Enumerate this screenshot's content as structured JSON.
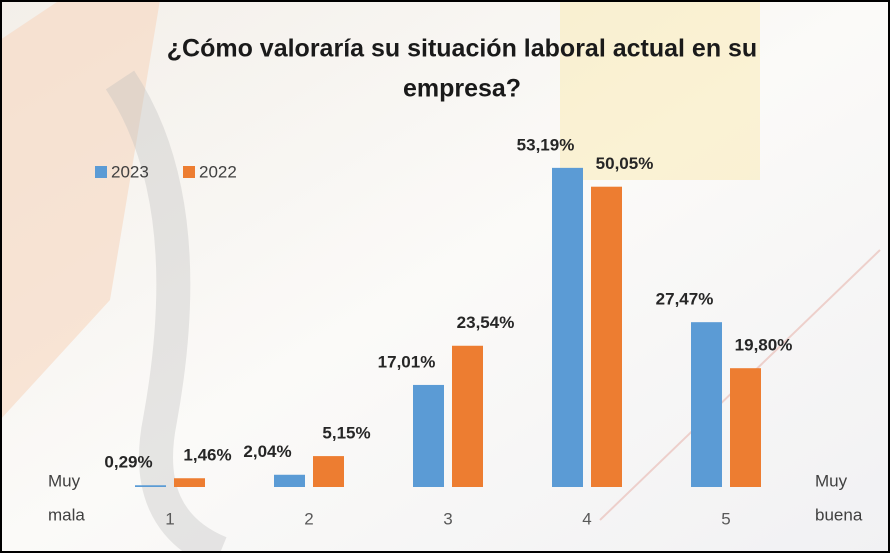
{
  "chart_data": {
    "type": "bar",
    "title": [
      "¿Cómo valoraría su situación laboral actual en su",
      "empresa?"
    ],
    "categories": [
      "1",
      "2",
      "3",
      "4",
      "5"
    ],
    "series": [
      {
        "name": "2023",
        "color": "#5b9bd5",
        "values": [
          0.29,
          2.04,
          17.01,
          53.19,
          27.47
        ],
        "value_labels": [
          "0,29%",
          "2,04%",
          "17,01%",
          "53,19%",
          "27,47%"
        ]
      },
      {
        "name": "2022",
        "color": "#ed7d31",
        "values": [
          1.46,
          5.15,
          23.54,
          50.05,
          19.8
        ],
        "value_labels": [
          "1,46%",
          "5,15%",
          "23,54%",
          "50,05%",
          "19,80%"
        ]
      }
    ],
    "annotations": {
      "left": [
        "Muy",
        "mala"
      ],
      "right": [
        "Muy",
        "buena"
      ]
    },
    "legend": "top-left"
  }
}
